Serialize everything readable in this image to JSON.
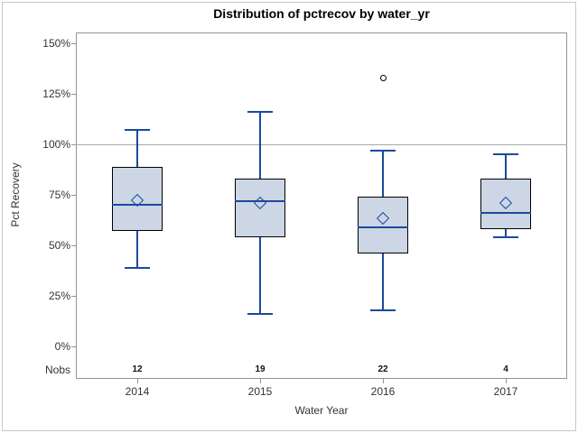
{
  "title": "Distribution of pctrecov by water_yr",
  "chart_data": {
    "type": "boxplot",
    "title": "Distribution of pctrecov by water_yr",
    "xlabel": "Water Year",
    "ylabel": "Pct Recovery",
    "nobs_label": "Nobs",
    "categories": [
      "2014",
      "2015",
      "2016",
      "2017"
    ],
    "nobs": [
      12,
      19,
      22,
      4
    ],
    "ytick_values": [
      0,
      25,
      50,
      75,
      100,
      125,
      150
    ],
    "ytick_labels": [
      "0%",
      "25%",
      "50%",
      "75%",
      "100%",
      "125%",
      "150%"
    ],
    "ylim": [
      0,
      150
    ],
    "reference_line": 100,
    "grid": false,
    "legend": "none",
    "series": [
      {
        "category": "2014",
        "nobs": 12,
        "whisker_low": 39,
        "q1": 57,
        "median": 70,
        "mean": 72,
        "q3": 89,
        "whisker_high": 107,
        "outliers": []
      },
      {
        "category": "2015",
        "nobs": 19,
        "whisker_low": 16,
        "q1": 54,
        "median": 72,
        "mean": 71,
        "q3": 83,
        "whisker_high": 116,
        "outliers": []
      },
      {
        "category": "2016",
        "nobs": 22,
        "whisker_low": 18,
        "q1": 46,
        "median": 59,
        "mean": 63,
        "q3": 74,
        "whisker_high": 97,
        "outliers": [
          133
        ]
      },
      {
        "category": "2017",
        "nobs": 4,
        "whisker_low": 54,
        "q1": 58,
        "median": 66,
        "mean": 71,
        "q3": 83,
        "whisker_high": 95,
        "outliers": []
      }
    ],
    "colors": {
      "box_fill": "#ccd6e4",
      "box_border": "#000000",
      "line": "#1a4a9e",
      "reference_line": "#a8a8a8",
      "frame": "#8e959c",
      "text": "#333333"
    }
  }
}
